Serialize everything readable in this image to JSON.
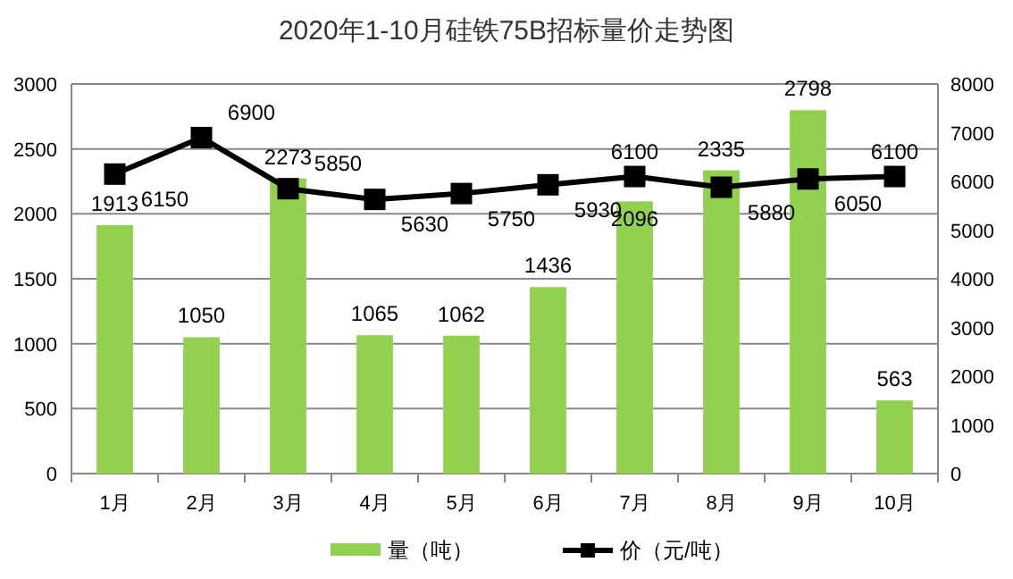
{
  "chart_data": {
    "type": "bar",
    "title": "2020年1-10月硅铁75B招标量价走势图",
    "categories": [
      "1月",
      "2月",
      "3月",
      "4月",
      "5月",
      "6月",
      "7月",
      "8月",
      "9月",
      "10月"
    ],
    "series": [
      {
        "name": "量（吨）",
        "color": "#92d050",
        "values": [
          1913,
          1050,
          2273,
          1065,
          1062,
          1436,
          2096,
          2335,
          2798,
          563
        ]
      },
      {
        "name": "价（元/吨）",
        "type": "line",
        "axis": "y2",
        "color": "#000000",
        "values": [
          6150,
          6900,
          5850,
          5630,
          5750,
          5930,
          6100,
          5880,
          6050,
          6100
        ]
      }
    ],
    "ylim": [
      0,
      3000
    ],
    "yticks": [
      0,
      500,
      1000,
      1500,
      2000,
      2500,
      3000
    ],
    "y2lim": [
      0,
      8000
    ],
    "y2ticks": [
      0,
      1000,
      2000,
      3000,
      4000,
      5000,
      6000,
      7000,
      8000
    ],
    "grid": "y",
    "legend": "bottom",
    "data_labels": true,
    "marker": "square",
    "line_style": "solid"
  }
}
